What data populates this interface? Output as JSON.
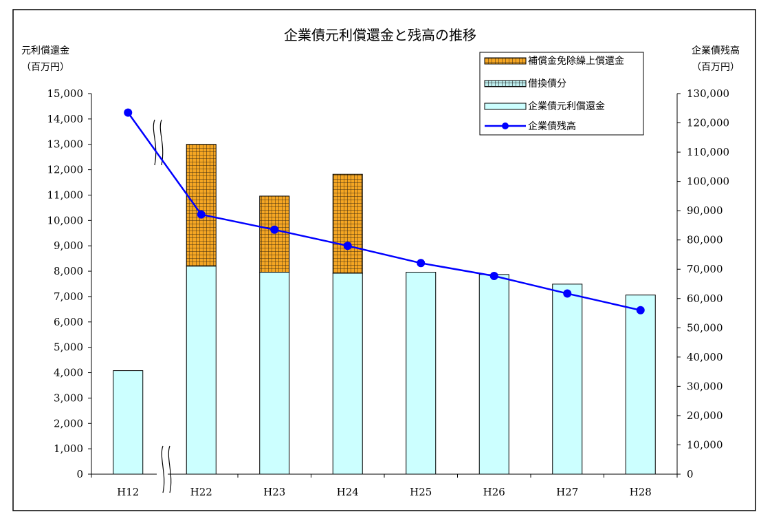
{
  "chart_data": {
    "type": "bar",
    "title": "企業債元利償還金と残高の推移",
    "categories": [
      "H12",
      "H22",
      "H23",
      "H24",
      "H25",
      "H26",
      "H27",
      "H28"
    ],
    "left_axis": {
      "label_line1": "元利償還金",
      "label_line2": "（百万円）",
      "ylim": [
        0,
        15000
      ],
      "tick_labels": [
        "0",
        "1,000",
        "2,000",
        "3,000",
        "4,000",
        "5,000",
        "6,000",
        "7,000",
        "8,000",
        "9,000",
        "10,000",
        "11,000",
        "12,000",
        "13,000",
        "14,000",
        "15,000"
      ]
    },
    "right_axis": {
      "label_line1": "企業債残高",
      "label_line2": "（百万円）",
      "ylim": [
        0,
        130000
      ],
      "tick_labels": [
        "0",
        "10,000",
        "20,000",
        "30,000",
        "40,000",
        "50,000",
        "60,000",
        "70,000",
        "80,000",
        "90,000",
        "100,000",
        "110,000",
        "120,000",
        "130,000"
      ]
    },
    "series": [
      {
        "name": "補償金免除繰上償還金",
        "type": "stacked-bar",
        "axis": "left",
        "color": "#F5A623",
        "pattern": "grid",
        "values": [
          0,
          4800,
          3000,
          3900,
          0,
          0,
          0,
          0
        ]
      },
      {
        "name": "借換債分",
        "type": "stacked-bar",
        "axis": "left",
        "color": "#BFEFEF",
        "pattern": "grid",
        "values": [
          0,
          0,
          0,
          0,
          0,
          0,
          0,
          0
        ]
      },
      {
        "name": "企業債元利償還金",
        "type": "bar",
        "axis": "left",
        "color": "#CCFFFF",
        "values": [
          4080,
          8200,
          7960,
          7920,
          7960,
          7870,
          7490,
          7060
        ]
      },
      {
        "name": "企業債残高",
        "type": "line",
        "axis": "right",
        "color": "#0000FF",
        "values": [
          123500,
          88700,
          83500,
          78000,
          72100,
          67700,
          61700,
          56000
        ]
      }
    ],
    "legend_position": "top-right",
    "axis_break": "between H12 and H22",
    "grid": false
  }
}
